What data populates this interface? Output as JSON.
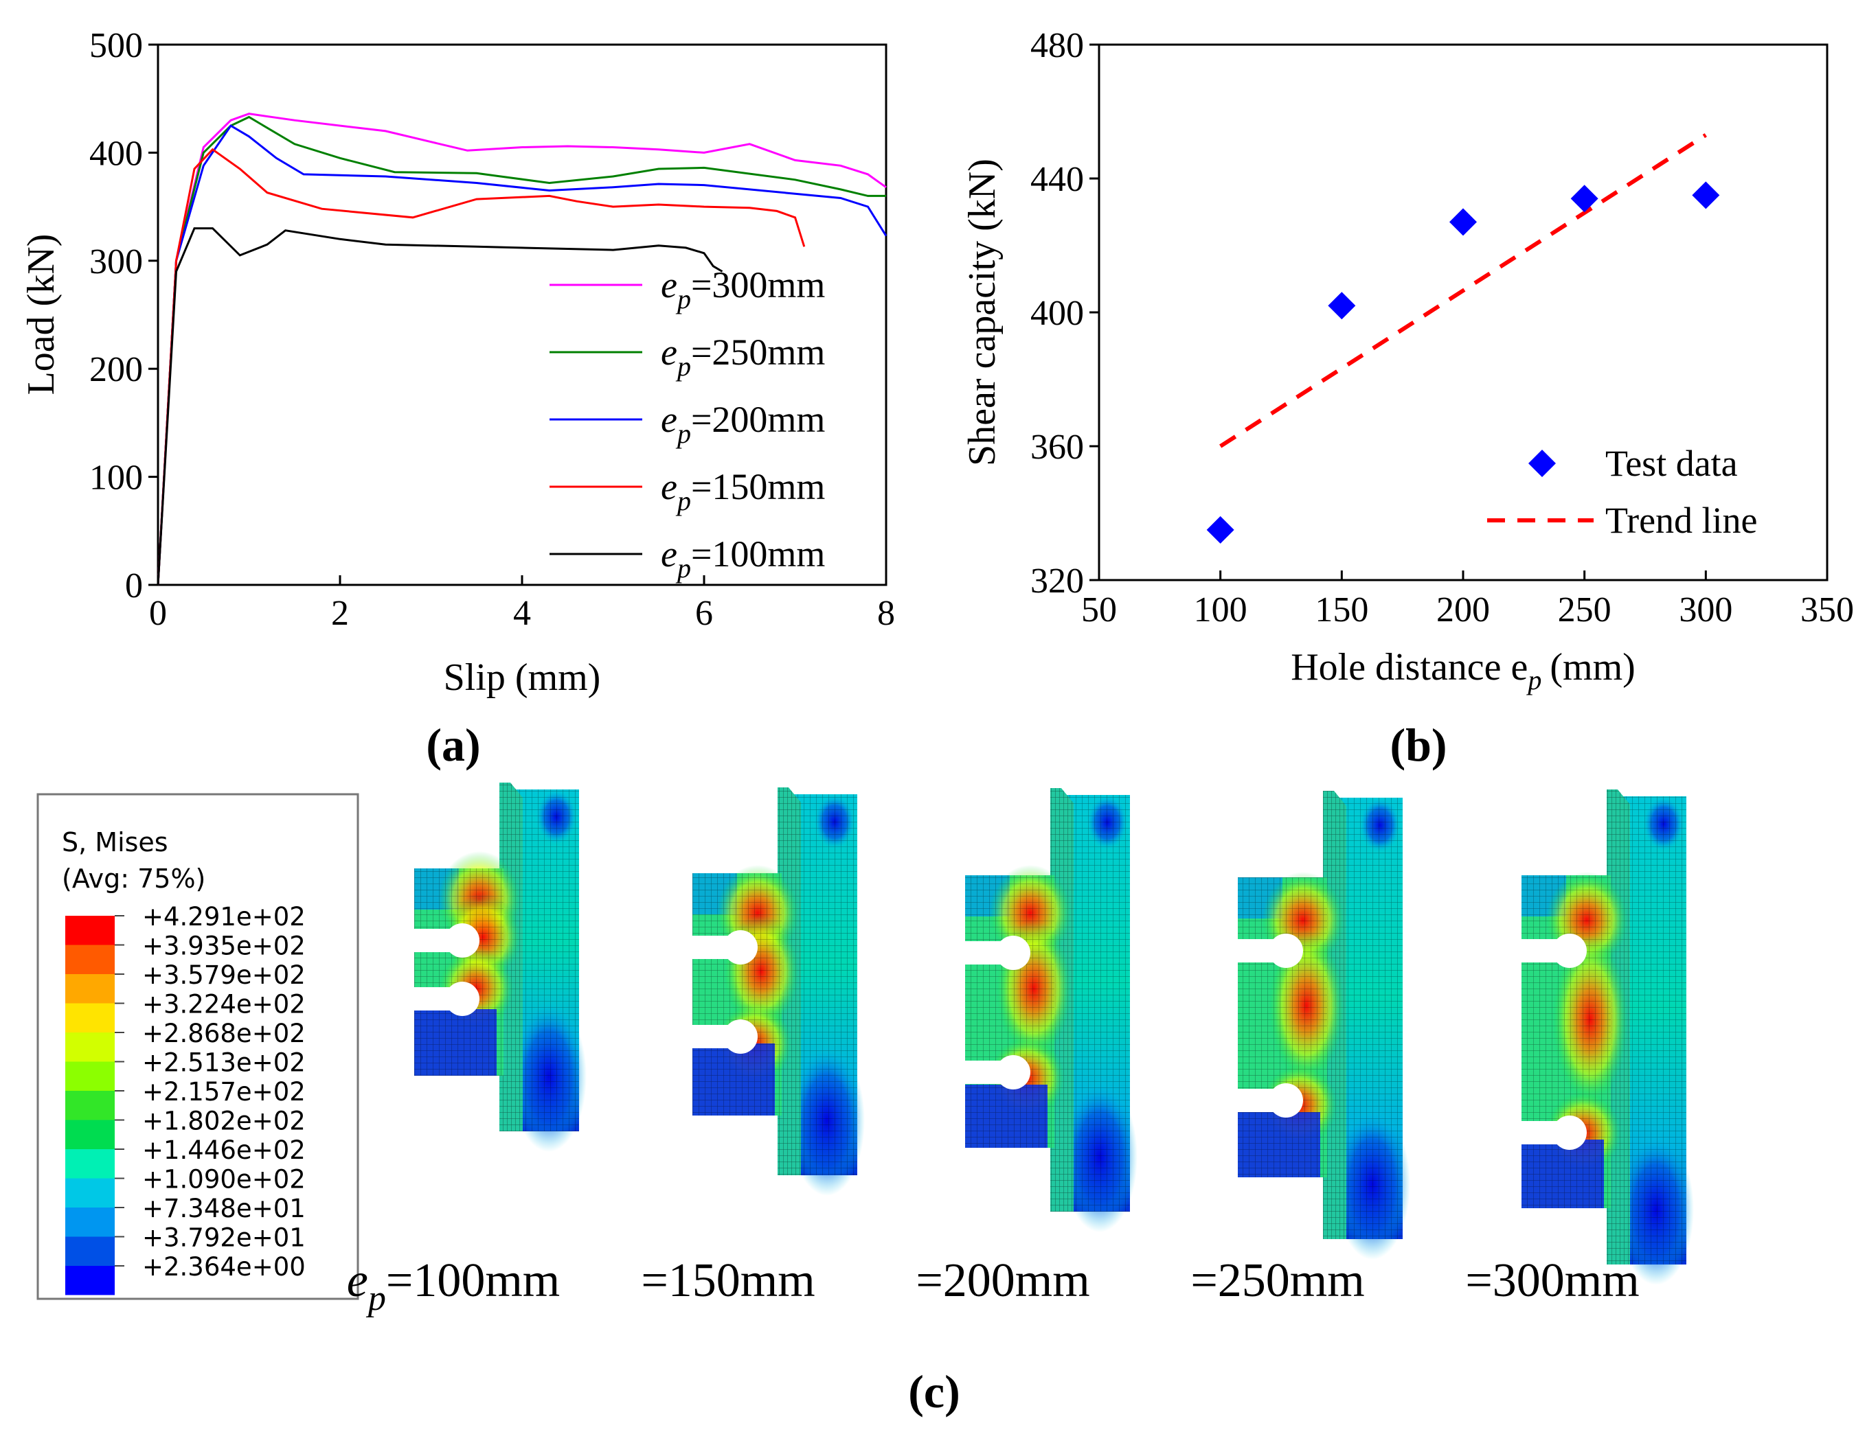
{
  "chart_data": [
    {
      "panel": "(a)",
      "type": "line",
      "xlabel": "Slip (mm)",
      "ylabel": "Load (kN)",
      "xlim": [
        0,
        8
      ],
      "ylim": [
        0,
        500
      ],
      "xticks": [
        0,
        2,
        4,
        6,
        8
      ],
      "yticks": [
        0,
        100,
        200,
        300,
        400,
        500
      ],
      "legend_position": "right",
      "legend_prefix": "e",
      "legend_subscript": "p",
      "series": [
        {
          "name": "=300mm",
          "color": "#ff00ff",
          "x": [
            0,
            0.2,
            0.5,
            0.8,
            1.0,
            1.5,
            2.5,
            3.0,
            3.4,
            4.0,
            4.5,
            5.0,
            5.5,
            6.0,
            6.5,
            7.0,
            7.5,
            7.8,
            8.0
          ],
          "y": [
            0,
            300,
            405,
            430,
            436,
            430,
            420,
            410,
            402,
            405,
            406,
            405,
            403,
            400,
            408,
            393,
            388,
            380,
            368
          ]
        },
        {
          "name": "=250mm",
          "color": "#008000",
          "x": [
            0,
            0.2,
            0.5,
            0.8,
            1.0,
            1.5,
            2.0,
            2.6,
            3.5,
            4.3,
            5.0,
            5.5,
            6.0,
            7.0,
            7.5,
            7.8,
            8.0
          ],
          "y": [
            0,
            300,
            400,
            425,
            433,
            408,
            395,
            382,
            381,
            372,
            378,
            385,
            386,
            375,
            366,
            360,
            360
          ]
        },
        {
          "name": "=200mm",
          "color": "#0000ff",
          "x": [
            0,
            0.2,
            0.5,
            0.8,
            1.0,
            1.3,
            1.6,
            2.5,
            3.5,
            4.3,
            5.0,
            5.5,
            6.0,
            7.0,
            7.5,
            7.8,
            8.0
          ],
          "y": [
            0,
            300,
            388,
            425,
            415,
            395,
            380,
            378,
            372,
            365,
            368,
            371,
            370,
            362,
            358,
            350,
            323
          ]
        },
        {
          "name": "=150mm",
          "color": "#ff0000",
          "x": [
            0,
            0.2,
            0.4,
            0.6,
            0.9,
            1.2,
            1.8,
            2.8,
            3.5,
            4.3,
            4.6,
            5.0,
            5.5,
            6.0,
            6.5,
            6.8,
            7.0,
            7.1
          ],
          "y": [
            0,
            300,
            385,
            403,
            385,
            363,
            348,
            340,
            357,
            360,
            355,
            350,
            352,
            350,
            349,
            346,
            340,
            313
          ]
        },
        {
          "name": "=100mm",
          "color": "#000000",
          "x": [
            0,
            0.2,
            0.4,
            0.6,
            0.9,
            1.2,
            1.4,
            2.0,
            2.5,
            3.5,
            4.5,
            5.0,
            5.5,
            5.8,
            6.0,
            6.1,
            6.2
          ],
          "y": [
            0,
            290,
            330,
            330,
            305,
            315,
            328,
            320,
            315,
            313,
            311,
            310,
            314,
            312,
            307,
            295,
            290
          ]
        }
      ]
    },
    {
      "panel": "(b)",
      "type": "scatter",
      "xlabel": "Hole distance e",
      "xlabel_subscript": "p",
      "xlabel_unit": "(mm)",
      "ylabel": "Shear capacity (kN)",
      "xlim": [
        50,
        350
      ],
      "ylim": [
        320,
        480
      ],
      "xticks": [
        50,
        100,
        150,
        200,
        250,
        300,
        350
      ],
      "yticks": [
        320,
        360,
        400,
        440,
        480
      ],
      "legend_position": "bottom-right",
      "series": [
        {
          "name": "Test data",
          "color": "#0000ff",
          "marker": "diamond",
          "x": [
            100,
            150,
            200,
            250,
            300
          ],
          "y": [
            335,
            402,
            427,
            434,
            435
          ]
        },
        {
          "name": "Trend line",
          "color": "#ff0000",
          "style": "dashed",
          "x": [
            100,
            300
          ],
          "y": [
            360,
            453
          ]
        }
      ]
    }
  ],
  "panel_c": {
    "label": "(c)",
    "colorbar": {
      "title": "S, Mises",
      "subtitle": "(Avg: 75%)",
      "values": [
        "+4.291e+02",
        "+3.935e+02",
        "+3.579e+02",
        "+3.224e+02",
        "+2.868e+02",
        "+2.513e+02",
        "+2.157e+02",
        "+1.802e+02",
        "+1.446e+02",
        "+1.090e+02",
        "+7.348e+01",
        "+3.792e+01",
        "+2.364e+00"
      ],
      "colors": [
        "#ff0000",
        "#ff5a00",
        "#ffa800",
        "#ffe400",
        "#d2ff00",
        "#8cff00",
        "#32e628",
        "#00dc50",
        "#00f0b4",
        "#00c8e6",
        "#0096f0",
        "#0050e6",
        "#0000ff"
      ]
    },
    "specimen_prefix": "e",
    "specimen_subscript": "p",
    "specimen_labels": [
      "=100mm",
      "=150mm",
      "=200mm",
      "=250mm",
      "=300mm"
    ]
  }
}
